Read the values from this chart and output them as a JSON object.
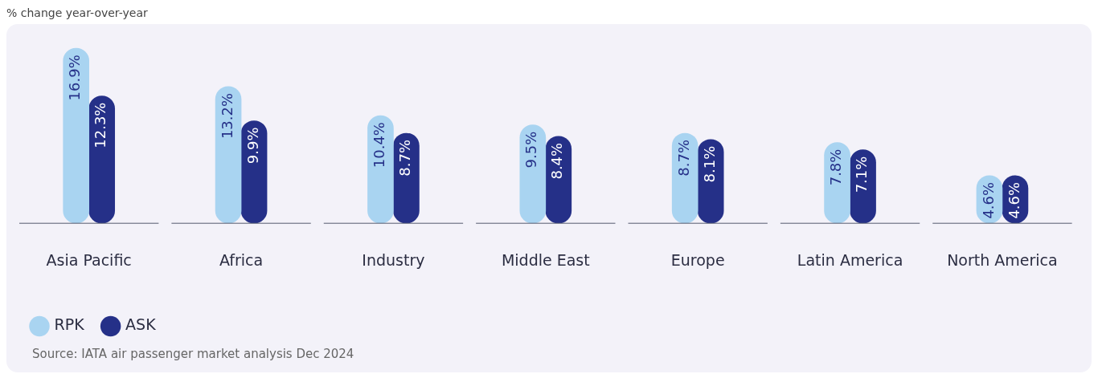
{
  "chart_data": {
    "type": "bar",
    "title": "% change year-over-year",
    "categories": [
      "Asia Pacific",
      "Africa",
      "Industry",
      "Middle East",
      "Europe",
      "Latin America",
      "North America"
    ],
    "series": [
      {
        "name": "RPK",
        "color": "#a9d4f1",
        "values": [
          16.9,
          13.2,
          10.4,
          9.5,
          8.7,
          7.8,
          4.6
        ],
        "value_labels": [
          "16.9%",
          "13.2%",
          "10.4%",
          "9.5%",
          "8.7%",
          "7.8%",
          "4.6%"
        ]
      },
      {
        "name": "ASK",
        "color": "#253088",
        "values": [
          12.3,
          9.9,
          8.7,
          8.4,
          8.1,
          7.1,
          4.6
        ],
        "value_labels": [
          "12.3%",
          "9.9%",
          "8.7%",
          "8.4%",
          "8.1%",
          "7.1%",
          "4.6%"
        ]
      }
    ],
    "grid": false,
    "legend": "bottom left",
    "annotations": [
      "Source: IATA air passenger market analysis Dec 2024"
    ]
  }
}
